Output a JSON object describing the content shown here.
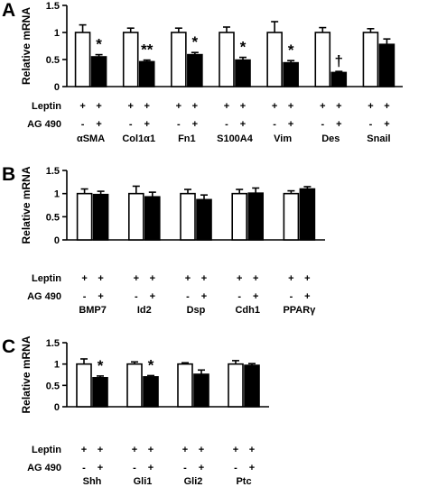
{
  "chart_data": [
    {
      "type": "bar",
      "panel": "A",
      "ylabel": "Relative mRNA",
      "ylim": [
        0,
        1.5
      ],
      "yticks": [
        "0",
        "0.5",
        "1",
        "1.5"
      ],
      "row_labels": [
        "Leptin",
        "AG 490"
      ],
      "categories": [
        "αSMA",
        "Col1α1",
        "Fn1",
        "S100A4",
        "Vim",
        "Des",
        "Snail"
      ],
      "series": [
        {
          "values": [
            1.0,
            1.0,
            1.0,
            1.0,
            1.0,
            1.0,
            1.0
          ],
          "errors": [
            0.14,
            0.08,
            0.08,
            0.1,
            0.2,
            0.09,
            0.07
          ],
          "fill": "#ffffff",
          "leptin": [
            "+",
            "+",
            "+",
            "+",
            "+",
            "+",
            "+"
          ],
          "ag490": [
            "-",
            "-",
            "-",
            "-",
            "-",
            "-",
            "-"
          ]
        },
        {
          "values": [
            0.55,
            0.46,
            0.59,
            0.49,
            0.44,
            0.26,
            0.78
          ],
          "errors": [
            0.04,
            0.03,
            0.04,
            0.05,
            0.04,
            0.02,
            0.1
          ],
          "fill": "#000000",
          "leptin": [
            "+",
            "+",
            "+",
            "+",
            "+",
            "+",
            "+"
          ],
          "ag490": [
            "+",
            "+",
            "+",
            "+",
            "+",
            "+",
            "+"
          ]
        }
      ],
      "markers": [
        "*",
        "**",
        "*",
        "*",
        "*",
        "†",
        ""
      ]
    },
    {
      "type": "bar",
      "panel": "B",
      "ylabel": "Relative mRNA",
      "ylim": [
        0,
        1.5
      ],
      "yticks": [
        "0",
        "0.5",
        "1",
        "1.5"
      ],
      "row_labels": [
        "Leptin",
        "AG 490"
      ],
      "categories": [
        "BMP7",
        "Id2",
        "Dsp",
        "Cdh1",
        "PPARγ"
      ],
      "series": [
        {
          "values": [
            1.0,
            1.0,
            1.0,
            1.0,
            1.0
          ],
          "errors": [
            0.1,
            0.16,
            0.09,
            0.09,
            0.06
          ],
          "fill": "#ffffff",
          "leptin": [
            "+",
            "+",
            "+",
            "+",
            "+"
          ],
          "ag490": [
            "-",
            "-",
            "-",
            "-",
            "-"
          ]
        },
        {
          "values": [
            0.98,
            0.93,
            0.87,
            1.01,
            1.1
          ],
          "errors": [
            0.07,
            0.1,
            0.1,
            0.11,
            0.05
          ],
          "fill": "#000000",
          "leptin": [
            "+",
            "+",
            "+",
            "+",
            "+"
          ],
          "ag490": [
            "+",
            "+",
            "+",
            "+",
            "+"
          ]
        }
      ],
      "markers": [
        "",
        "",
        "",
        "",
        ""
      ]
    },
    {
      "type": "bar",
      "panel": "C",
      "ylabel": "Relative mRNA",
      "ylim": [
        0,
        1.5
      ],
      "yticks": [
        "0",
        "0.5",
        "1",
        "1.5"
      ],
      "row_labels": [
        "Leptin",
        "AG 490"
      ],
      "categories": [
        "Shh",
        "Gli1",
        "Gli2",
        "Ptc"
      ],
      "series": [
        {
          "values": [
            1.0,
            1.0,
            1.0,
            1.0
          ],
          "errors": [
            0.12,
            0.05,
            0.03,
            0.08
          ],
          "fill": "#ffffff",
          "leptin": [
            "+",
            "+",
            "+",
            "+"
          ],
          "ag490": [
            "-",
            "-",
            "-",
            "-"
          ]
        },
        {
          "values": [
            0.68,
            0.7,
            0.76,
            0.97
          ],
          "errors": [
            0.04,
            0.03,
            0.1,
            0.04
          ],
          "fill": "#000000",
          "leptin": [
            "+",
            "+",
            "+",
            "+"
          ],
          "ag490": [
            "+",
            "+",
            "+",
            "+"
          ]
        }
      ],
      "markers": [
        "*",
        "*",
        "",
        ""
      ]
    }
  ]
}
